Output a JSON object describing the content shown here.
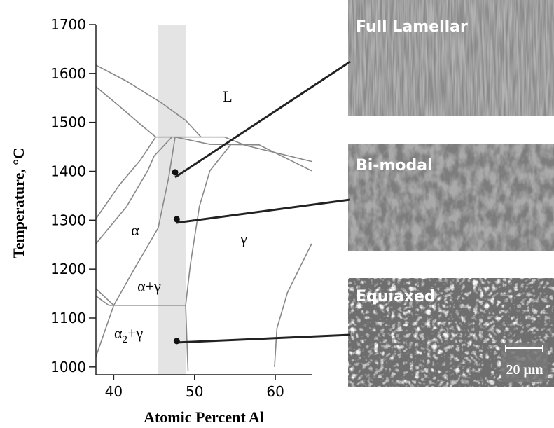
{
  "chart_data": {
    "type": "line",
    "y_label": "Temperature, °C",
    "x_label": "Atomic Percent Al",
    "xlim": [
      37.8,
      64.5
    ],
    "ylim": [
      984,
      1700
    ],
    "xticks": [
      40,
      50,
      60
    ],
    "yticks": [
      1000,
      1100,
      1200,
      1300,
      1400,
      1500,
      1600,
      1700
    ],
    "highlight": [
      45.5,
      48.9
    ],
    "lines": [
      {
        "x": [
          37.8,
          41.6,
          45.9,
          48.9,
          50.8
        ],
        "y": [
          1617,
          1584,
          1540,
          1504,
          1470
        ]
      },
      {
        "x": [
          37.8,
          40.7,
          43.3,
          45.2
        ],
        "y": [
          1573,
          1533,
          1496,
          1470
        ]
      },
      {
        "x": [
          45.2,
          53.7,
          56.3,
          64.5
        ],
        "y": [
          1470,
          1470,
          1453,
          1420
        ]
      },
      {
        "x": [
          47.6,
          51.9,
          58.0,
          64.5
        ],
        "y": [
          1470,
          1455,
          1454,
          1401
        ]
      },
      {
        "x": [
          37.8,
          40.7,
          43.3,
          45.2
        ],
        "y": [
          1303,
          1372,
          1423,
          1470
        ]
      },
      {
        "x": [
          37.8,
          41.6,
          44.2,
          45.0,
          47.2
        ],
        "y": [
          1252,
          1328,
          1401,
          1431,
          1470
        ]
      },
      {
        "x": [
          47.6,
          46.8,
          45.5,
          42.4,
          40.0
        ],
        "y": [
          1470,
          1387,
          1284,
          1196,
          1126
        ]
      },
      {
        "x": [
          54.5,
          51.9,
          50.6,
          49.5,
          48.9,
          49.2
        ],
        "y": [
          1455,
          1401,
          1328,
          1211,
          1126,
          991
        ]
      },
      {
        "x": [
          40.0,
          48.9
        ],
        "y": [
          1126,
          1126
        ]
      },
      {
        "x": [
          37.8,
          40.0
        ],
        "y": [
          1160,
          1126
        ]
      },
      {
        "x": [
          37.8,
          39.4,
          40.0
        ],
        "y": [
          1145,
          1126,
          1126
        ]
      },
      {
        "x": [
          40.0,
          37.8
        ],
        "y": [
          1126,
          1021
        ]
      },
      {
        "x": [
          64.5,
          61.5,
          60.2,
          59.9
        ],
        "y": [
          1252,
          1152,
          1079,
          1000
        ]
      }
    ],
    "points": {
      "x": [
        47.6,
        47.8,
        47.8
      ],
      "y": [
        1398,
        1302,
        1053
      ]
    },
    "phase_labels": [
      "L",
      "α",
      "γ",
      "α+γ"
    ],
    "alpha2_label": {
      "base": "α",
      "sub": "2",
      "rest": "+γ"
    }
  },
  "micrographs": [
    {
      "title": "Full Lamellar"
    },
    {
      "title": "Bi-modal"
    },
    {
      "title": "Equiaxed"
    }
  ],
  "scale_bar": "20 μm"
}
